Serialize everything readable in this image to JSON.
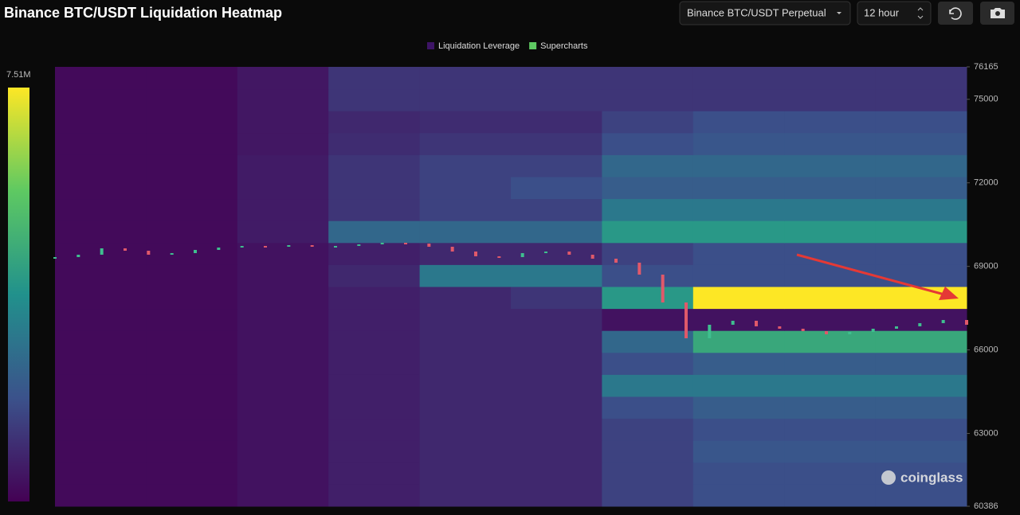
{
  "header": {
    "title": "Binance BTC/USDT Liquidation Heatmap",
    "pair_select": "Binance BTC/USDT Perpetual",
    "period_select": "12 hour"
  },
  "chart_data": {
    "type": "heatmap",
    "legend": [
      {
        "name": "Liquidation Leverage",
        "color": "#3d1466"
      },
      {
        "name": "Supercharts",
        "color": "#5ec962"
      }
    ],
    "categories": [
      null,
      null,
      null,
      null,
      null,
      null,
      null,
      null,
      null,
      null
    ],
    "ylim": [
      60386,
      76165
    ],
    "yticks": [
      60386,
      63000,
      66000,
      69000,
      72000,
      75000,
      76165
    ],
    "zlim": [
      0,
      7510000
    ],
    "zticks": [
      {
        "value": 7510000,
        "label": "7.51M"
      }
    ],
    "z": [
      [
        200000,
        200000,
        400000,
        700000,
        900000,
        900000,
        1500000,
        1800000,
        1800000,
        1800000
      ],
      [
        200000,
        200000,
        400000,
        700000,
        900000,
        900000,
        1500000,
        1800000,
        1800000,
        1800000
      ],
      [
        200000,
        200000,
        400000,
        700000,
        900000,
        900000,
        1500000,
        2000000,
        2000000,
        2000000
      ],
      [
        200000,
        200000,
        400000,
        700000,
        900000,
        900000,
        1500000,
        1800000,
        1800000,
        1800000
      ],
      [
        200000,
        200000,
        400000,
        700000,
        900000,
        900000,
        1800000,
        2200000,
        2200000,
        2200000
      ],
      [
        200000,
        200000,
        400000,
        700000,
        900000,
        900000,
        3000000,
        3000000,
        3000000,
        3000000
      ],
      [
        200000,
        200000,
        400000,
        700000,
        900000,
        900000,
        1800000,
        2200000,
        2200000,
        2200000
      ],
      [
        200000,
        200000,
        400000,
        700000,
        900000,
        900000,
        2500000,
        4500000,
        4500000,
        4500000
      ],
      [
        200000,
        200000,
        400000,
        700000,
        900000,
        900000,
        400000,
        400000,
        400000,
        400000
      ],
      [
        200000,
        200000,
        400000,
        700000,
        900000,
        1200000,
        4000000,
        7510000,
        7510000,
        7510000
      ],
      [
        200000,
        200000,
        400000,
        900000,
        3000000,
        3000000,
        1800000,
        1800000,
        1800000,
        1800000
      ],
      [
        200000,
        200000,
        400000,
        700000,
        900000,
        900000,
        1500000,
        1800000,
        1800000,
        1800000
      ],
      [
        200000,
        200000,
        600000,
        2500000,
        2500000,
        2500000,
        4000000,
        4000000,
        4000000,
        4000000
      ],
      [
        200000,
        200000,
        600000,
        1200000,
        1500000,
        1500000,
        3000000,
        3000000,
        3000000,
        3000000
      ],
      [
        200000,
        200000,
        600000,
        1200000,
        1500000,
        1800000,
        2200000,
        2200000,
        2200000,
        2200000
      ],
      [
        200000,
        200000,
        600000,
        1200000,
        1500000,
        1500000,
        2500000,
        2500000,
        2500000,
        2500000
      ],
      [
        200000,
        200000,
        500000,
        1000000,
        1200000,
        1200000,
        1800000,
        2000000,
        2000000,
        2000000
      ],
      [
        200000,
        200000,
        500000,
        900000,
        1000000,
        1000000,
        1500000,
        1800000,
        1800000,
        1800000
      ],
      [
        200000,
        200000,
        500000,
        1200000,
        1200000,
        1200000,
        1200000,
        1200000,
        1200000,
        1200000
      ],
      [
        200000,
        200000,
        500000,
        1200000,
        1200000,
        1200000,
        1200000,
        1200000,
        1200000,
        1200000
      ]
    ],
    "price": [
      69333,
      69419,
      69648,
      69562,
      69419,
      69476,
      69591,
      69676,
      69734,
      69705,
      69762,
      69705,
      69734,
      69791,
      69848,
      69819,
      69705,
      69533,
      69362,
      69333,
      69476,
      69533,
      69419,
      69276,
      69133,
      68704,
      67704,
      66418,
      66904,
      67047,
      66847,
      66761,
      66675,
      66561,
      66647,
      66761,
      66847,
      66961,
      67075,
      66904
    ],
    "watermark": "coinglass"
  }
}
